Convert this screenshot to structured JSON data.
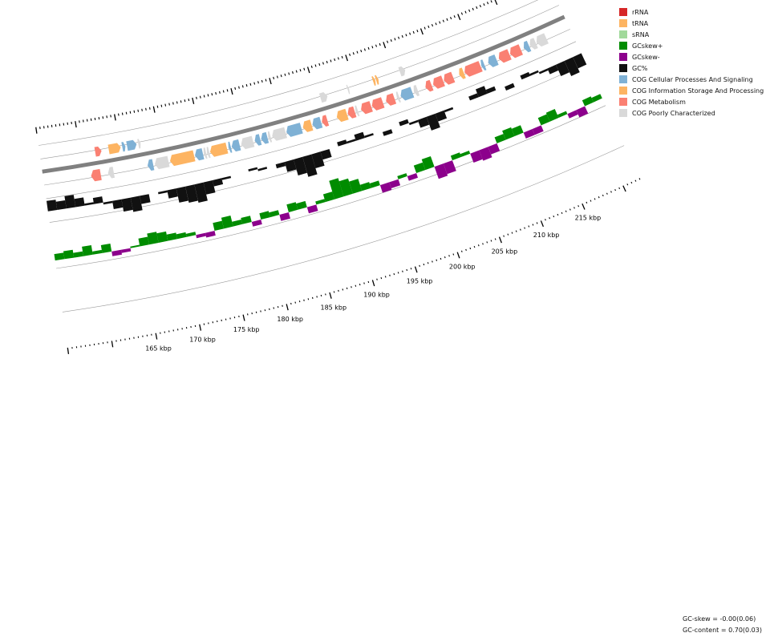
{
  "legend": [
    {
      "label": "rRNA",
      "color": "#d62728"
    },
    {
      "label": "tRNA",
      "color": "#fdb462"
    },
    {
      "label": "sRNA",
      "color": "#a1d99b"
    },
    {
      "label": "GCskew+",
      "color": "#008c00"
    },
    {
      "label": "GCskew-",
      "color": "#8c008c"
    },
    {
      "label": "GC%",
      "color": "#111111"
    },
    {
      "label": "COG Cellular Processes And Signaling",
      "color": "#7fb1d5"
    },
    {
      "label": "COG Information Storage And Processing",
      "color": "#fdb462"
    },
    {
      "label": "COG Metabolism",
      "color": "#fa8072"
    },
    {
      "label": "COG Poorly Characterized",
      "color": "#d9d9d9"
    }
  ],
  "scale_labels": [
    "165 kbp",
    "170 kbp",
    "175 kbp",
    "180 kbp",
    "185 kbp",
    "190 kbp",
    "195 kbp",
    "200 kbp",
    "205 kbp",
    "210 kbp",
    "215 kbp"
  ],
  "stats": {
    "gc_skew": "GC-skew = -0.00(0.06)",
    "gc_content": "GC-content = 0.70(0.03)"
  },
  "features": [
    {
      "strand": "+",
      "cog": "Metabolism",
      "start": 161.8,
      "end": 162.6
    },
    {
      "strand": "+",
      "cog": "Information Storage And Processing",
      "start": 163.5,
      "end": 165.0
    },
    {
      "strand": "+",
      "cog": "Cellular Processes And Signaling",
      "start": 165.2,
      "end": 165.6
    },
    {
      "strand": "+",
      "cog": "Cellular Processes And Signaling",
      "start": 165.8,
      "end": 167.0
    },
    {
      "strand": "+",
      "cog": "Poorly Characterized",
      "start": 167.2,
      "end": 167.5
    },
    {
      "strand": "+",
      "cog": "Poorly Characterized",
      "start": 190.4,
      "end": 191.3
    },
    {
      "strand": "+",
      "cog": "Poorly Characterized",
      "start": 193.9,
      "end": 194.1
    },
    {
      "strand": "+",
      "cog": "Information Storage And Processing",
      "start": 197.2,
      "end": 197.5
    },
    {
      "strand": "+",
      "cog": "Information Storage And Processing",
      "start": 197.6,
      "end": 197.9
    },
    {
      "strand": "+",
      "cog": "Poorly Characterized",
      "start": 200.7,
      "end": 201.4
    },
    {
      "strand": "-",
      "cog": "Metabolism",
      "start": 160.8,
      "end": 162.0
    },
    {
      "strand": "-",
      "cog": "Poorly Characterized",
      "start": 162.9,
      "end": 163.6
    },
    {
      "strand": "-",
      "cog": "Cellular Processes And Signaling",
      "start": 167.8,
      "end": 168.5
    },
    {
      "strand": "-",
      "cog": "Poorly Characterized",
      "start": 168.7,
      "end": 170.4
    },
    {
      "strand": "-",
      "cog": "Information Storage And Processing",
      "start": 170.6,
      "end": 173.6
    },
    {
      "strand": "-",
      "cog": "Cellular Processes And Signaling",
      "start": 173.7,
      "end": 174.7
    },
    {
      "strand": "-",
      "cog": "Poorly Characterized",
      "start": 174.8,
      "end": 175.1
    },
    {
      "strand": "-",
      "cog": "Poorly Characterized",
      "start": 175.2,
      "end": 175.5
    },
    {
      "strand": "-",
      "cog": "Information Storage And Processing",
      "start": 175.6,
      "end": 177.7
    },
    {
      "strand": "-",
      "cog": "Cellular Processes And Signaling",
      "start": 177.9,
      "end": 178.2
    },
    {
      "strand": "-",
      "cog": "Cellular Processes And Signaling",
      "start": 178.3,
      "end": 179.3
    },
    {
      "strand": "-",
      "cog": "Poorly Characterized",
      "start": 179.5,
      "end": 181.0
    },
    {
      "strand": "-",
      "cog": "Cellular Processes And Signaling",
      "start": 181.2,
      "end": 181.9
    },
    {
      "strand": "-",
      "cog": "Cellular Processes And Signaling",
      "start": 182.0,
      "end": 182.8
    },
    {
      "strand": "-",
      "cog": "Poorly Characterized",
      "start": 182.9,
      "end": 183.2
    },
    {
      "strand": "-",
      "cog": "Poorly Characterized",
      "start": 183.4,
      "end": 185.1
    },
    {
      "strand": "-",
      "cog": "Cellular Processes And Signaling",
      "start": 185.2,
      "end": 187.1
    },
    {
      "strand": "-",
      "cog": "Information Storage And Processing",
      "start": 187.3,
      "end": 188.4
    },
    {
      "strand": "-",
      "cog": "Cellular Processes And Signaling",
      "start": 188.5,
      "end": 189.6
    },
    {
      "strand": "-",
      "cog": "Metabolism",
      "start": 189.7,
      "end": 190.4
    },
    {
      "strand": "-",
      "cog": "Information Storage And Processing",
      "start": 191.6,
      "end": 192.9
    },
    {
      "strand": "-",
      "cog": "Metabolism",
      "start": 193.0,
      "end": 193.9
    },
    {
      "strand": "-",
      "cog": "Poorly Characterized",
      "start": 194.0,
      "end": 194.3
    },
    {
      "strand": "-",
      "cog": "Metabolism",
      "start": 194.7,
      "end": 196.0
    },
    {
      "strand": "-",
      "cog": "Metabolism",
      "start": 196.1,
      "end": 197.5
    },
    {
      "strand": "-",
      "cog": "Metabolism",
      "start": 197.9,
      "end": 199.0
    },
    {
      "strand": "-",
      "cog": "Poorly Characterized",
      "start": 199.3,
      "end": 199.6
    },
    {
      "strand": "-",
      "cog": "Cellular Processes And Signaling",
      "start": 199.8,
      "end": 201.3
    },
    {
      "strand": "-",
      "cog": "Poorly Characterized",
      "start": 201.5,
      "end": 202.0
    },
    {
      "strand": "-",
      "cog": "Metabolism",
      "start": 203.0,
      "end": 203.8
    },
    {
      "strand": "-",
      "cog": "Metabolism",
      "start": 204.0,
      "end": 205.3
    },
    {
      "strand": "-",
      "cog": "Metabolism",
      "start": 205.4,
      "end": 206.6
    },
    {
      "strand": "-",
      "cog": "Information Storage And Processing",
      "start": 207.4,
      "end": 208.0
    },
    {
      "strand": "-",
      "cog": "Metabolism",
      "start": 208.1,
      "end": 210.2
    },
    {
      "strand": "-",
      "cog": "Cellular Processes And Signaling",
      "start": 210.3,
      "end": 210.7
    },
    {
      "strand": "-",
      "cog": "Cellular Processes And Signaling",
      "start": 211.2,
      "end": 212.3
    },
    {
      "strand": "-",
      "cog": "Metabolism",
      "start": 212.6,
      "end": 214.0
    },
    {
      "strand": "-",
      "cog": "Metabolism",
      "start": 214.1,
      "end": 215.5
    },
    {
      "strand": "-",
      "cog": "Cellular Processes And Signaling",
      "start": 215.9,
      "end": 216.6
    },
    {
      "strand": "-",
      "cog": "Poorly Characterized",
      "start": 216.7,
      "end": 217.5
    },
    {
      "strand": "-",
      "cog": "Poorly Characterized",
      "start": 217.6,
      "end": 218.9
    }
  ],
  "gc_content": [
    0.75,
    0.74,
    0.76,
    0.74,
    0.71,
    0.73,
    0.69,
    0.66,
    0.64,
    0.63,
    0.66,
    0.7,
    0.69,
    0.66,
    0.63,
    0.62,
    0.61,
    0.64,
    0.67,
    0.69,
    0.7,
    0.7,
    0.71,
    0.69,
    0.7,
    0.68,
    0.65,
    0.62,
    0.6,
    0.63,
    0.66,
    0.7,
    0.72,
    0.71,
    0.73,
    0.71,
    0.7,
    0.68,
    0.7,
    0.72,
    0.69,
    0.66,
    0.63,
    0.66,
    0.69,
    0.7,
    0.7,
    0.72,
    0.74,
    0.72,
    0.7,
    0.68,
    0.7,
    0.72,
    0.71,
    0.69,
    0.67,
    0.64,
    0.62,
    0.64
  ],
  "gc_skew": [
    0.04,
    0.05,
    0.03,
    0.06,
    0.02,
    0.05,
    -0.03,
    -0.02,
    0.01,
    0.05,
    0.07,
    0.06,
    0.04,
    0.03,
    0.02,
    -0.02,
    -0.03,
    0.05,
    0.07,
    0.03,
    0.04,
    -0.03,
    0.04,
    0.03,
    -0.04,
    0.05,
    0.04,
    -0.04,
    0.02,
    0.05,
    0.12,
    0.1,
    0.08,
    0.04,
    0.03,
    -0.05,
    -0.04,
    0.02,
    -0.03,
    0.05,
    0.07,
    -0.08,
    -0.07,
    0.03,
    0.02,
    -0.06,
    -0.07,
    -0.05,
    0.04,
    0.06,
    0.05,
    -0.04,
    -0.04,
    0.05,
    0.06,
    0.02,
    -0.03,
    -0.05,
    0.04,
    0.03
  ]
}
